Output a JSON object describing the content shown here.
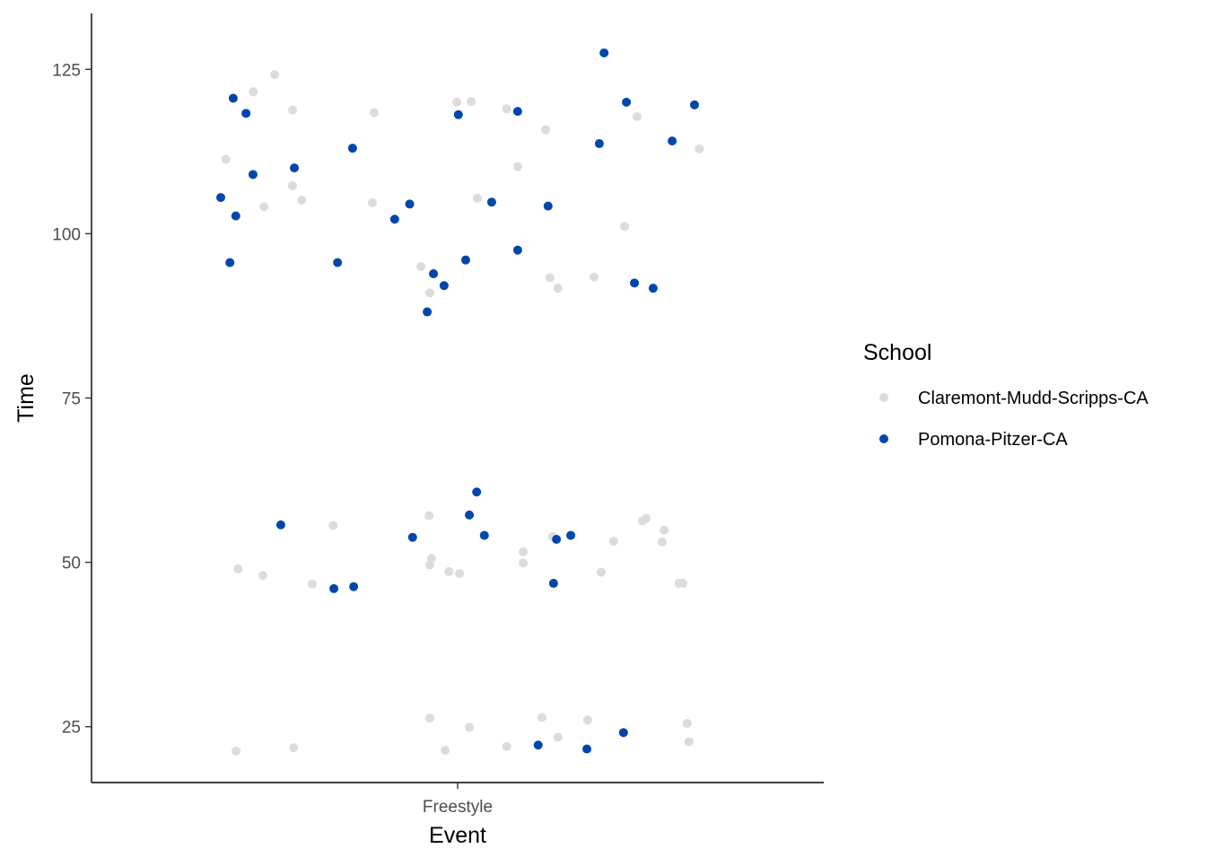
{
  "chart_data": {
    "type": "scatter",
    "jitter": true,
    "xlabel": "Event",
    "ylabel": "Time",
    "categories": [
      "Freestyle"
    ],
    "ylim": [
      16.5,
      133.5
    ],
    "y_ticks": [
      25,
      50,
      75,
      100,
      125
    ],
    "grid": false,
    "legend": {
      "title": "School",
      "placement": "right"
    },
    "series": [
      {
        "name": "Claremont-Mudd-Scripps-CA",
        "color": "#dcdcdc",
        "points": [
          {
            "x": -0.633,
            "y": 111.3
          },
          {
            "x": -0.558,
            "y": 121.6
          },
          {
            "x": -0.5,
            "y": 124.2
          },
          {
            "x": -0.451,
            "y": 118.8
          },
          {
            "x": -0.529,
            "y": 104.1
          },
          {
            "x": -0.451,
            "y": 107.3
          },
          {
            "x": -0.426,
            "y": 105.1
          },
          {
            "x": -0.228,
            "y": 118.4
          },
          {
            "x": -0.233,
            "y": 104.7
          },
          {
            "x": -0.002,
            "y": 120.0
          },
          {
            "x": 0.037,
            "y": 120.1
          },
          {
            "x": 0.134,
            "y": 119.0
          },
          {
            "x": 0.164,
            "y": 110.2
          },
          {
            "x": 0.24,
            "y": 115.8
          },
          {
            "x": 0.49,
            "y": 117.8
          },
          {
            "x": 0.66,
            "y": 112.9
          },
          {
            "x": 0.054,
            "y": 105.4
          },
          {
            "x": -0.1,
            "y": 95.0
          },
          {
            "x": -0.076,
            "y": 91.0
          },
          {
            "x": 0.252,
            "y": 93.3
          },
          {
            "x": 0.274,
            "y": 91.7
          },
          {
            "x": 0.373,
            "y": 93.4
          },
          {
            "x": 0.456,
            "y": 101.1
          },
          {
            "x": -0.34,
            "y": 55.6
          },
          {
            "x": -0.6,
            "y": 49.0
          },
          {
            "x": -0.532,
            "y": 48.0
          },
          {
            "x": -0.397,
            "y": 46.7
          },
          {
            "x": -0.078,
            "y": 57.1
          },
          {
            "x": -0.071,
            "y": 50.6
          },
          {
            "x": -0.076,
            "y": 49.6
          },
          {
            "x": -0.024,
            "y": 48.6
          },
          {
            "x": 0.005,
            "y": 48.3
          },
          {
            "x": 0.179,
            "y": 51.6
          },
          {
            "x": 0.179,
            "y": 49.9
          },
          {
            "x": 0.259,
            "y": 53.9
          },
          {
            "x": 0.392,
            "y": 48.5
          },
          {
            "x": 0.426,
            "y": 53.2
          },
          {
            "x": 0.505,
            "y": 56.3
          },
          {
            "x": 0.515,
            "y": 56.7
          },
          {
            "x": 0.564,
            "y": 54.9
          },
          {
            "x": 0.559,
            "y": 53.1
          },
          {
            "x": 0.605,
            "y": 46.8
          },
          {
            "x": 0.615,
            "y": 46.8
          },
          {
            "x": -0.605,
            "y": 21.3
          },
          {
            "x": -0.448,
            "y": 21.8
          },
          {
            "x": -0.076,
            "y": 26.3
          },
          {
            "x": -0.034,
            "y": 21.4
          },
          {
            "x": 0.032,
            "y": 24.9
          },
          {
            "x": 0.134,
            "y": 22.0
          },
          {
            "x": 0.23,
            "y": 26.4
          },
          {
            "x": 0.274,
            "y": 23.4
          },
          {
            "x": 0.355,
            "y": 26.0
          },
          {
            "x": 0.627,
            "y": 25.5
          },
          {
            "x": 0.632,
            "y": 22.7
          }
        ]
      },
      {
        "name": "Pomona-Pitzer-CA",
        "color": "#0047ab",
        "points": [
          {
            "x": -0.647,
            "y": 105.5
          },
          {
            "x": -0.613,
            "y": 120.6
          },
          {
            "x": -0.578,
            "y": 118.3
          },
          {
            "x": -0.559,
            "y": 109.0
          },
          {
            "x": -0.606,
            "y": 102.7
          },
          {
            "x": -0.622,
            "y": 95.6
          },
          {
            "x": -0.446,
            "y": 110.0
          },
          {
            "x": -0.287,
            "y": 113.0
          },
          {
            "x": -0.328,
            "y": 95.6
          },
          {
            "x": -0.172,
            "y": 102.2
          },
          {
            "x": -0.131,
            "y": 104.5
          },
          {
            "x": 0.002,
            "y": 118.1
          },
          {
            "x": 0.164,
            "y": 118.6
          },
          {
            "x": 0.093,
            "y": 104.8
          },
          {
            "x": 0.022,
            "y": 96.0
          },
          {
            "x": -0.066,
            "y": 93.9
          },
          {
            "x": -0.037,
            "y": 92.1
          },
          {
            "x": -0.083,
            "y": 88.1
          },
          {
            "x": 0.164,
            "y": 97.5
          },
          {
            "x": 0.247,
            "y": 104.2
          },
          {
            "x": 0.4,
            "y": 127.5
          },
          {
            "x": 0.461,
            "y": 120.0
          },
          {
            "x": 0.387,
            "y": 113.7
          },
          {
            "x": 0.586,
            "y": 114.1
          },
          {
            "x": 0.647,
            "y": 119.6
          },
          {
            "x": 0.483,
            "y": 92.5
          },
          {
            "x": 0.534,
            "y": 91.7
          },
          {
            "x": -0.483,
            "y": 55.7
          },
          {
            "x": -0.338,
            "y": 46.0
          },
          {
            "x": -0.284,
            "y": 46.3
          },
          {
            "x": -0.123,
            "y": 53.8
          },
          {
            "x": 0.032,
            "y": 57.2
          },
          {
            "x": 0.052,
            "y": 60.7
          },
          {
            "x": 0.073,
            "y": 54.1
          },
          {
            "x": 0.27,
            "y": 53.5
          },
          {
            "x": 0.309,
            "y": 54.1
          },
          {
            "x": 0.262,
            "y": 46.8
          },
          {
            "x": 0.22,
            "y": 22.2
          },
          {
            "x": 0.353,
            "y": 21.6
          },
          {
            "x": 0.453,
            "y": 24.1
          }
        ]
      }
    ]
  }
}
